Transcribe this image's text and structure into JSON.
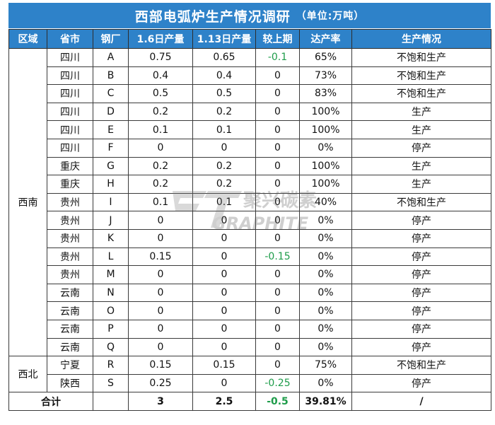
{
  "title": "西部电弧炉生产情况调研",
  "unit": "（单位:万吨）",
  "headers": [
    "区域",
    "省市",
    "钢厂",
    "1.6日产量",
    "1.13日产量",
    "较上期",
    "达产率",
    "生产情况"
  ],
  "regions": {
    "southwest": "西南",
    "northwest": "西北"
  },
  "rows": [
    {
      "province": "四川",
      "plant": "A",
      "jan6": "0.75",
      "jan13": "0.65",
      "change": "-0.1",
      "rate": "65%",
      "status": "不饱和生产"
    },
    {
      "province": "四川",
      "plant": "B",
      "jan6": "0.4",
      "jan13": "0.4",
      "change": "0",
      "rate": "73%",
      "status": "不饱和生产"
    },
    {
      "province": "四川",
      "plant": "C",
      "jan6": "0.5",
      "jan13": "0.5",
      "change": "0",
      "rate": "83%",
      "status": "不饱和生产"
    },
    {
      "province": "四川",
      "plant": "D",
      "jan6": "0.2",
      "jan13": "0.2",
      "change": "0",
      "rate": "100%",
      "status": "生产"
    },
    {
      "province": "四川",
      "plant": "E",
      "jan6": "0.1",
      "jan13": "0.1",
      "change": "0",
      "rate": "100%",
      "status": "生产"
    },
    {
      "province": "四川",
      "plant": "F",
      "jan6": "0",
      "jan13": "0",
      "change": "0",
      "rate": "0%",
      "status": "停产"
    },
    {
      "province": "重庆",
      "plant": "G",
      "jan6": "0.2",
      "jan13": "0.2",
      "change": "0",
      "rate": "100%",
      "status": "生产"
    },
    {
      "province": "重庆",
      "plant": "H",
      "jan6": "0.2",
      "jan13": "0.2",
      "change": "0",
      "rate": "100%",
      "status": "生产"
    },
    {
      "province": "贵州",
      "plant": "I",
      "jan6": "0.1",
      "jan13": "0.1",
      "change": "0",
      "rate": "40%",
      "status": "不饱和生产"
    },
    {
      "province": "贵州",
      "plant": "J",
      "jan6": "0",
      "jan13": "0",
      "change": "0",
      "rate": "0%",
      "status": "停产"
    },
    {
      "province": "贵州",
      "plant": "K",
      "jan6": "0",
      "jan13": "0",
      "change": "0",
      "rate": "0%",
      "status": "停产"
    },
    {
      "province": "贵州",
      "plant": "L",
      "jan6": "0.15",
      "jan13": "0",
      "change": "-0.15",
      "rate": "0%",
      "status": "停产"
    },
    {
      "province": "贵州",
      "plant": "M",
      "jan6": "0",
      "jan13": "0",
      "change": "0",
      "rate": "0%",
      "status": "停产"
    },
    {
      "province": "云南",
      "plant": "N",
      "jan6": "0",
      "jan13": "0",
      "change": "0",
      "rate": "0%",
      "status": "停产"
    },
    {
      "province": "云南",
      "plant": "O",
      "jan6": "0",
      "jan13": "0",
      "change": "0",
      "rate": "0%",
      "status": "停产"
    },
    {
      "province": "云南",
      "plant": "P",
      "jan6": "0",
      "jan13": "0",
      "change": "0",
      "rate": "0%",
      "status": "停产"
    },
    {
      "province": "云南",
      "plant": "Q",
      "jan6": "0",
      "jan13": "0",
      "change": "0",
      "rate": "0%",
      "status": "停产"
    },
    {
      "province": "宁夏",
      "plant": "R",
      "jan6": "0.15",
      "jan13": "0.15",
      "change": "0",
      "rate": "75%",
      "status": "不饱和生产"
    },
    {
      "province": "陕西",
      "plant": "S",
      "jan6": "0.25",
      "jan13": "0",
      "change": "-0.25",
      "rate": "0%",
      "status": "停产"
    }
  ],
  "total": {
    "label": "合计",
    "jan6": "3",
    "jan13": "2.5",
    "change": "-0.5",
    "rate": "39.81%",
    "status": "/"
  },
  "watermark": {
    "cn": "聚兴碳素",
    "en": "GRAPHITE"
  },
  "colors": {
    "header_bg": "#2e82c9",
    "header_text": "#ffffff",
    "negative": "#1e9c4a"
  }
}
